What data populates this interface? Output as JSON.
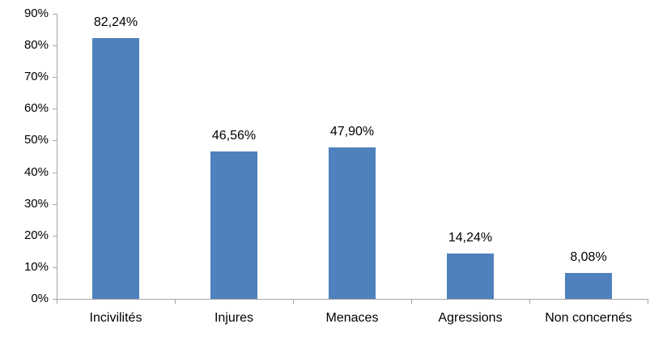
{
  "chart_data": {
    "type": "bar",
    "categories": [
      "Incivilités",
      "Injures",
      "Menaces",
      "Agressions",
      "Non concernés"
    ],
    "values": [
      82.24,
      46.56,
      47.9,
      14.24,
      8.08
    ],
    "value_labels": [
      "82,24%",
      "46,56%",
      "47,90%",
      "14,24%",
      "8,08%"
    ],
    "title": "",
    "xlabel": "",
    "ylabel": "",
    "ylim": [
      0,
      90
    ],
    "ytick_step": 10,
    "ytick_labels": [
      "0%",
      "10%",
      "20%",
      "30%",
      "40%",
      "50%",
      "60%",
      "70%",
      "80%",
      "90%"
    ],
    "grid": false,
    "legend": false,
    "bar_color": "#4F81BD",
    "axis_color": "#A6A6A6",
    "text_color": "#000000",
    "background_color": "#FFFFFF"
  }
}
